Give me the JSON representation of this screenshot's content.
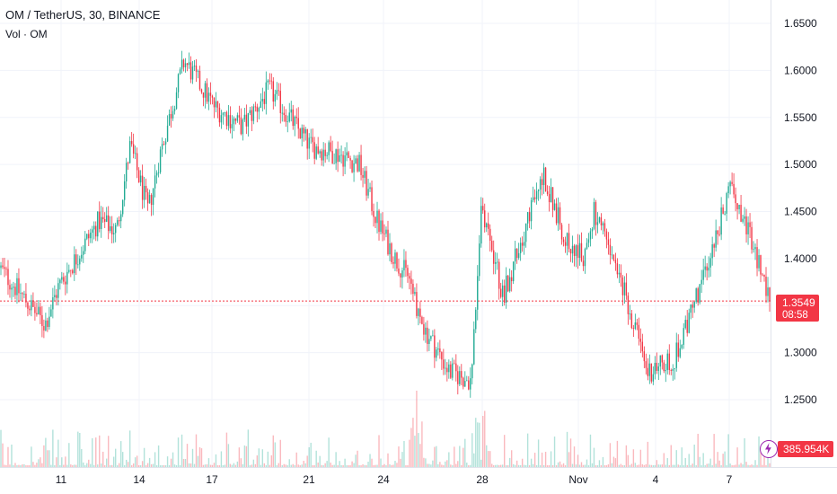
{
  "header": {
    "symbol_line": "OM / TetherUS, 30, BINANCE",
    "volume_line": "Vol · OM"
  },
  "current_price": {
    "value": "1.3549",
    "countdown": "08:58"
  },
  "volume_badge": "385.954K",
  "colors": {
    "up": "#22ab94",
    "down": "#f23645",
    "grid": "#f0f3fa",
    "axis_text": "#131722",
    "price_line": "#f23645",
    "bolt": "#9c27b0"
  },
  "chart_data": {
    "type": "candlestick",
    "symbol": "OM / TetherUS",
    "interval": "30",
    "exchange": "BINANCE",
    "y_ticks": [
      "1.6500",
      "1.6000",
      "1.5500",
      "1.5000",
      "1.4500",
      "1.4000",
      "1.3000",
      "1.2500"
    ],
    "y_tick_values": [
      1.65,
      1.6,
      1.55,
      1.5,
      1.45,
      1.4,
      1.3,
      1.25
    ],
    "ylim": [
      1.225,
      1.665
    ],
    "x_ticks": [
      "11",
      "14",
      "17",
      "21",
      "24",
      "28",
      "Nov",
      "4",
      "7"
    ],
    "price_path": [
      {
        "date": "Oct 8",
        "price": 1.39
      },
      {
        "date": "Oct 9",
        "price": 1.33
      },
      {
        "date": "Oct 10",
        "price": 1.37
      },
      {
        "date": "Oct 11",
        "price": 1.44
      },
      {
        "date": "Oct 12",
        "price": 1.43
      },
      {
        "date": "Oct 13",
        "price": 1.52
      },
      {
        "date": "Oct 13",
        "price": 1.45
      },
      {
        "date": "Oct 14",
        "price": 1.51
      },
      {
        "date": "Oct 15",
        "price": 1.61
      },
      {
        "date": "Oct 16",
        "price": 1.56
      },
      {
        "date": "Oct 17",
        "price": 1.54
      },
      {
        "date": "Oct 18",
        "price": 1.58
      },
      {
        "date": "Oct 19",
        "price": 1.52
      },
      {
        "date": "Oct 20",
        "price": 1.51
      },
      {
        "date": "Oct 21",
        "price": 1.5
      },
      {
        "date": "Oct 22",
        "price": 1.44
      },
      {
        "date": "Oct 23",
        "price": 1.4
      },
      {
        "date": "Oct 24",
        "price": 1.38
      },
      {
        "date": "Oct 25",
        "price": 1.33
      },
      {
        "date": "Oct 26",
        "price": 1.28
      },
      {
        "date": "Oct 27",
        "price": 1.27
      },
      {
        "date": "Oct 28",
        "price": 1.46
      },
      {
        "date": "Oct 29",
        "price": 1.36
      },
      {
        "date": "Oct 30",
        "price": 1.49
      },
      {
        "date": "Oct 31",
        "price": 1.42
      },
      {
        "date": "Nov 1",
        "price": 1.4
      },
      {
        "date": "Nov 2",
        "price": 1.45
      },
      {
        "date": "Nov 3",
        "price": 1.35
      },
      {
        "date": "Nov 4",
        "price": 1.28
      },
      {
        "date": "Nov 5",
        "price": 1.29
      },
      {
        "date": "Nov 6",
        "price": 1.37
      },
      {
        "date": "Nov 7",
        "price": 1.48
      },
      {
        "date": "Nov 8",
        "price": 1.3549
      }
    ],
    "last_price": 1.3549,
    "last_volume": "385.954K",
    "grid": true
  }
}
